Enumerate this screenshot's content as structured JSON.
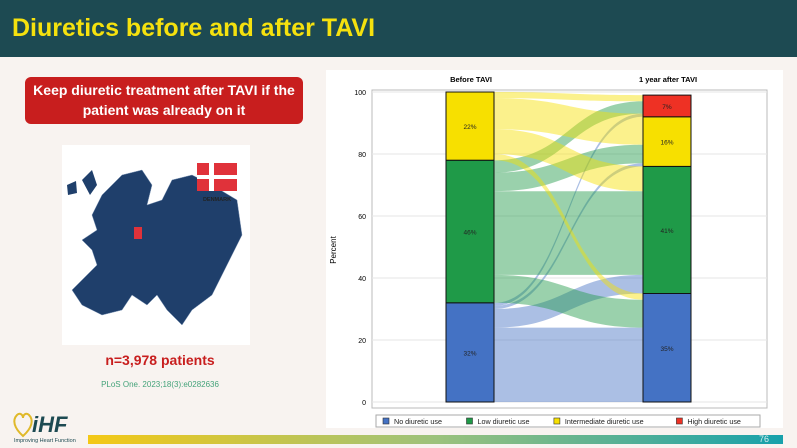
{
  "slide": {
    "title": "Diuretics before and after TAVI",
    "callout": "Keep diuretic treatment after TAVI if the patient was already on it",
    "map_label": "DENMARK",
    "n_patients": "n=3,978 patients",
    "reference": "PLoS One. 2023;18(3):e0282636",
    "logo": "iHF",
    "logo_sub": "Improving Heart Function",
    "page_number": "76"
  },
  "colors": {
    "header": "#1d4a52",
    "title": "#f5e10e",
    "callout": "#c81e1e"
  },
  "chart_data": {
    "type": "bar",
    "subtype": "alluvial stacked",
    "categories": [
      "Before TAVI",
      "1 year after TAVI"
    ],
    "ylabel": "Percent",
    "ylim": [
      0,
      100
    ],
    "yticks": [
      0,
      20,
      40,
      60,
      80,
      100
    ],
    "grid": true,
    "legend": "bottom",
    "series": [
      {
        "name": "No diuretic use",
        "color": "#4472c4",
        "values": [
          32,
          35
        ],
        "labels": [
          "32%",
          "35%"
        ]
      },
      {
        "name": "Low diuretic use",
        "color": "#1f9a48",
        "values": [
          46,
          41
        ],
        "labels": [
          "46%",
          "41%"
        ]
      },
      {
        "name": "Intermediate diuretic use",
        "color": "#f7e000",
        "values": [
          22,
          16
        ],
        "labels": [
          "22%",
          "16%"
        ]
      },
      {
        "name": "High diuretic use",
        "color": "#ee3124",
        "values": [
          0,
          7
        ],
        "labels": [
          "",
          "7%"
        ]
      }
    ],
    "flows": [
      [
        24,
        6,
        1,
        1
      ],
      [
        9,
        27,
        6,
        4
      ],
      [
        2,
        8,
        10,
        2
      ],
      [
        0,
        0,
        0,
        0
      ]
    ]
  }
}
